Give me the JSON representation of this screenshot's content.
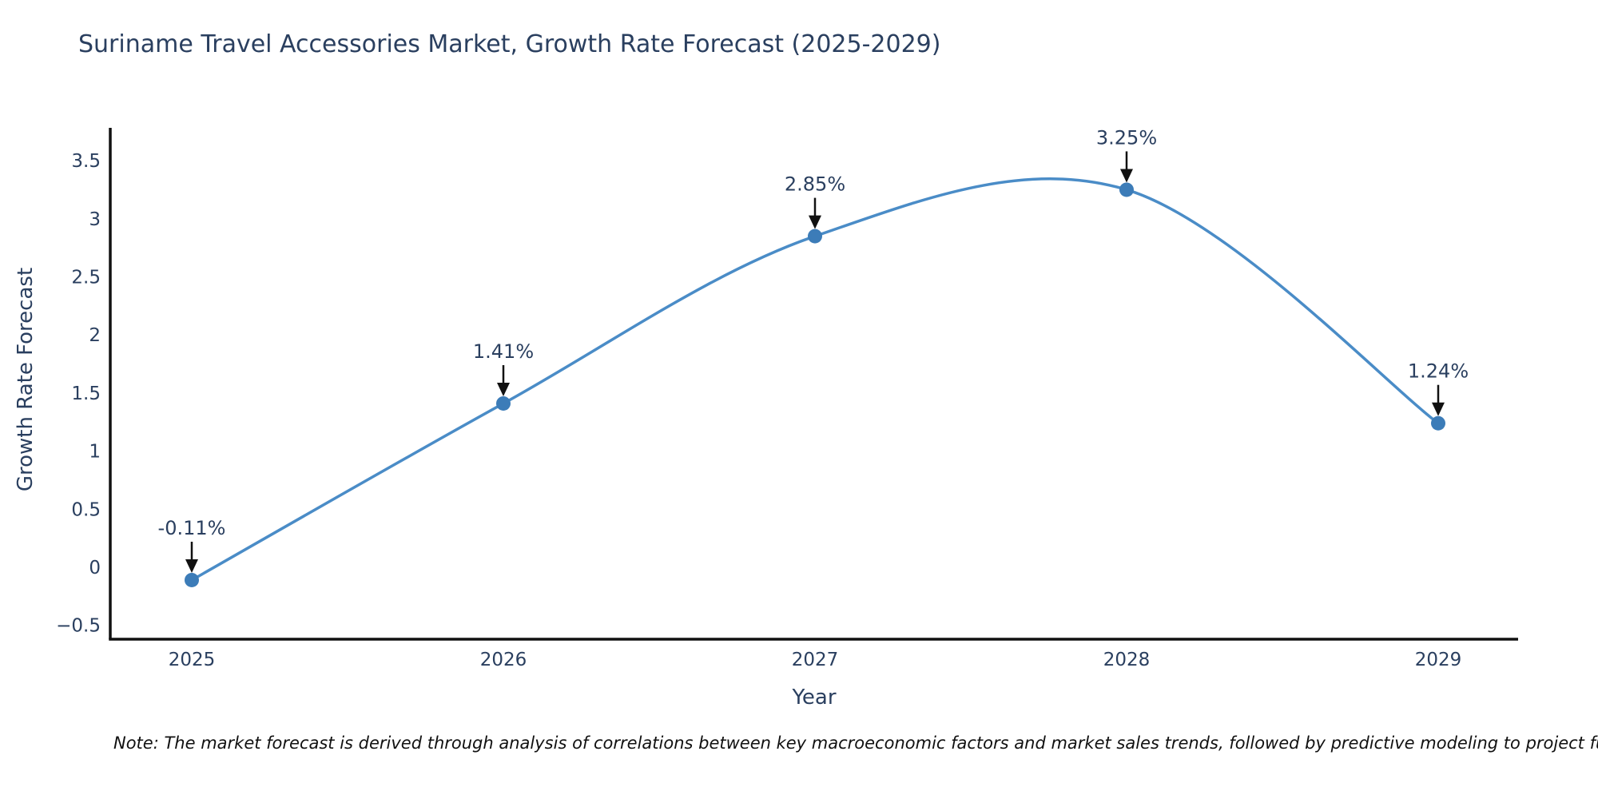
{
  "title": "Suriname Travel Accessories Market, Growth Rate Forecast (2025-2029)",
  "note": "Note: The market forecast is derived through analysis of correlations between key macroeconomic factors and market sales trends, followed by predictive modeling to project future sales.",
  "chart_data": {
    "type": "line",
    "title": "Suriname Travel Accessories Market, Growth Rate Forecast (2025-2029)",
    "x": [
      2025,
      2026,
      2027,
      2028,
      2029
    ],
    "series": [
      {
        "name": "Growth Rate Forecast",
        "values": [
          -0.11,
          1.41,
          2.85,
          3.25,
          1.24
        ]
      }
    ],
    "point_labels": [
      "-0.11%",
      "1.41%",
      "2.85%",
      "3.25%",
      "1.24%"
    ],
    "xlabel": "Year",
    "ylabel": "Growth Rate Forecast",
    "ylim": [
      -0.62,
      3.78
    ],
    "yticks": [
      -0.5,
      0,
      0.5,
      1,
      1.5,
      2,
      2.5,
      3,
      3.5
    ],
    "xticks": [
      "2025",
      "2026",
      "2027",
      "2028",
      "2029"
    ],
    "line_shape": "spline",
    "grid": false,
    "legend_position": "none",
    "colors": {
      "line": "#4a8cc7",
      "marker": "#3c7cb8",
      "axis_spine": "#111111",
      "tick_text": "#2a3f5f",
      "annotation_text": "#2a3f5f",
      "arrow": "#111111",
      "background": "#ffffff"
    }
  }
}
